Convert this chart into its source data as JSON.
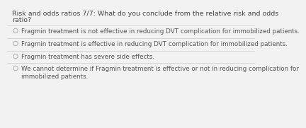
{
  "title_line1": "Risk and odds ratios 7/7: What do you conclude from the relative risk and odds",
  "title_line2": "ratio?",
  "options": [
    "Fragmin treatment is not effective in reducing DVT complication for immobilized patients.",
    "Fragmin treatment is effective in reducing DVT complication for immobilized patients.",
    "Fragmin treatment has severe side effects.",
    "We cannot determine if Fragmin treatment is effective or not in reducing complication for\nimmobilized patients."
  ],
  "bg_color": "#f2f2f2",
  "title_color": "#444444",
  "option_color": "#555555",
  "circle_color": "#aaaaaa",
  "divider_color": "#cccccc",
  "title_fontsize": 6.8,
  "option_fontsize": 6.3
}
